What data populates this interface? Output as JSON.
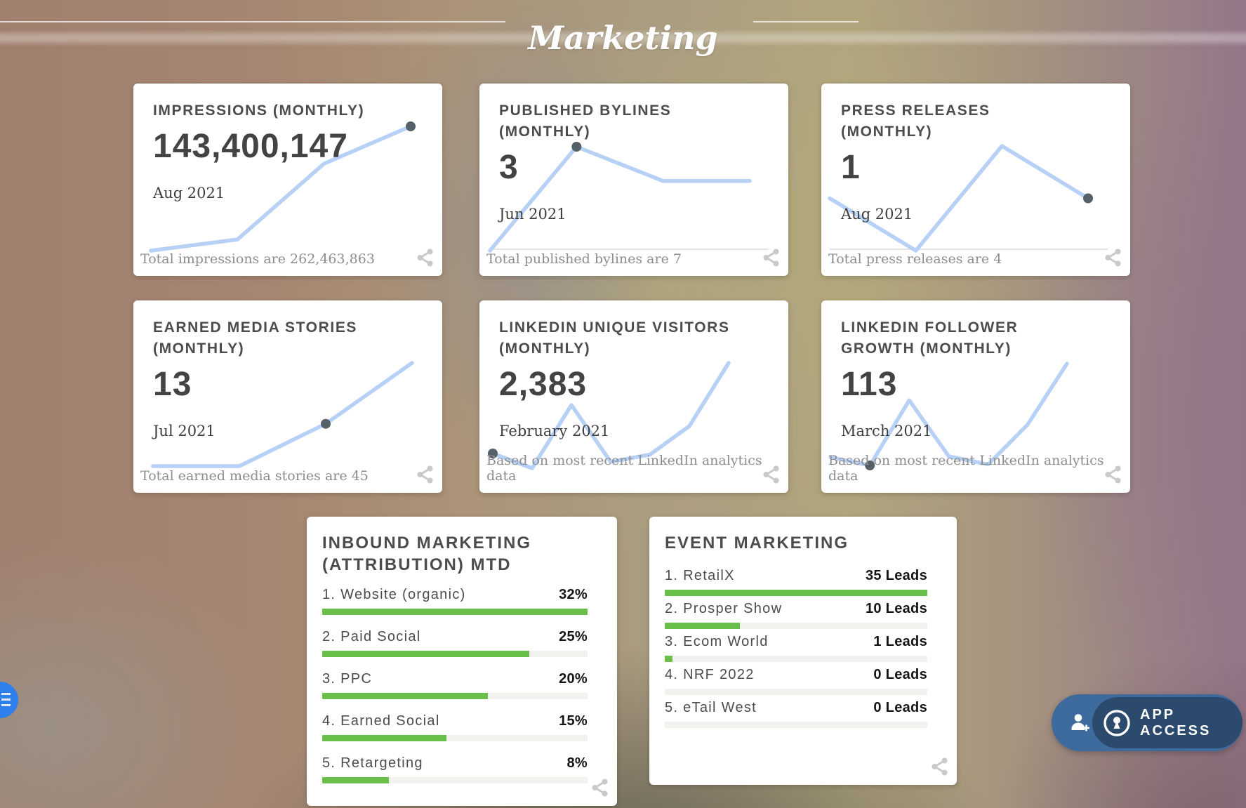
{
  "header": {
    "title": "Marketing"
  },
  "metric_cards": [
    {
      "title": "IMPRESSIONS (MONTHLY)",
      "value": "143,400,147",
      "date": "Aug 2021",
      "footnote": "Total impressions are 262,463,863"
    },
    {
      "title": "PUBLISHED BYLINES\n(MONTHLY)",
      "value": "3",
      "date": "Jun 2021",
      "footnote": "Total published bylines are 7"
    },
    {
      "title": "PRESS RELEASES\n(MONTHLY)",
      "value": "1",
      "date": "Aug 2021",
      "footnote": "Total press releases are 4"
    },
    {
      "title": "EARNED MEDIA STORIES\n(MONTHLY)",
      "value": "13",
      "date": "Jul 2021",
      "footnote": "Total earned media stories are 45"
    },
    {
      "title": "LINKEDIN UNIQUE VISITORS\n(MONTHLY)",
      "value": "2,383",
      "date": "February 2021",
      "footnote": "Based on most recent LinkedIn analytics data"
    },
    {
      "title": "LINKEDIN FOLLOWER\nGROWTH (MONTHLY)",
      "value": "113",
      "date": "March 2021",
      "footnote": "Based on most recent LinkedIn analytics data"
    }
  ],
  "bar_cards": [
    {
      "title": "INBOUND MARKETING\n(ATTRIBUTION) MTD",
      "items": [
        {
          "label": "1. Website (organic)",
          "value_label": "32%"
        },
        {
          "label": "2. Paid Social",
          "value_label": "25%"
        },
        {
          "label": "3. PPC",
          "value_label": "20%"
        },
        {
          "label": "4. Earned Social",
          "value_label": "15%"
        },
        {
          "label": "5. Retargeting",
          "value_label": "8%"
        }
      ]
    },
    {
      "title": "EVENT MARKETING",
      "items": [
        {
          "label": "1. RetailX",
          "value_label": "35 Leads"
        },
        {
          "label": "2. Prosper Show",
          "value_label": "10 Leads"
        },
        {
          "label": "3. Ecom World",
          "value_label": "1 Leads"
        },
        {
          "label": "4. NRF 2022",
          "value_label": "0 Leads"
        },
        {
          "label": "5. eTail West",
          "value_label": "0 Leads"
        }
      ]
    }
  ],
  "floating": {
    "app_access_label": "APP ACCESS"
  },
  "icons": {
    "share": "share-nodes",
    "person_add": "person-plus",
    "app_access_key": "keyhole-in-circle",
    "edge_widget": "menu-lines"
  },
  "colors": {
    "accent_green": "#6abf4b",
    "bar_track": "#f1f1ee",
    "spark_blue": "#b7d0f5",
    "dot_gray": "#566069",
    "baseline_gray": "#dcdcdc",
    "pill_light_blue": "#3e6b9d",
    "pill_dark_blue": "#2b4a6e",
    "edge_circle_blue": "#2f80ed",
    "card_bg": "#ffffff",
    "title_gray": "#4c4c4c"
  },
  "chart_data": [
    {
      "type": "line",
      "metric": "IMPRESSIONS (MONTHLY)",
      "current_value": 143400147,
      "period": "Aug 2021",
      "total": 262463863,
      "y_relative": [
        0,
        9,
        70,
        100
      ],
      "highlight_index": 3
    },
    {
      "type": "line",
      "metric": "PUBLISHED BYLINES (MONTHLY)",
      "current_value": 3,
      "period": "Jun 2021",
      "total": 7,
      "y_relative": [
        0,
        100,
        67,
        67
      ],
      "highlight_index": 1
    },
    {
      "type": "line",
      "metric": "PRESS RELEASES (MONTHLY)",
      "current_value": 1,
      "period": "Aug 2021",
      "total": 4,
      "y_relative": [
        50,
        0,
        100,
        50
      ],
      "highlight_index": 3
    },
    {
      "type": "line",
      "metric": "EARNED MEDIA STORIES (MONTHLY)",
      "current_value": 13,
      "period": "Jul 2021",
      "total": 45,
      "y_relative": [
        0,
        0,
        41,
        100
      ],
      "highlight_index": 2
    },
    {
      "type": "line",
      "metric": "LINKEDIN UNIQUE VISITORS (MONTHLY)",
      "current_value": 2383,
      "period": "February 2021",
      "y_relative": [
        14,
        0,
        60,
        6,
        13,
        40,
        100
      ],
      "highlight_index": 0
    },
    {
      "type": "line",
      "metric": "LINKEDIN FOLLOWER GROWTH (MONTHLY)",
      "current_value": 113,
      "period": "March 2021",
      "y_relative": [
        8,
        0,
        64,
        9,
        1,
        40,
        100
      ],
      "highlight_index": 1
    },
    {
      "type": "bar",
      "title": "INBOUND MARKETING (ATTRIBUTION) MTD",
      "unit": "%",
      "categories": [
        "Website (organic)",
        "Paid Social",
        "PPC",
        "Earned Social",
        "Retargeting"
      ],
      "values": [
        32,
        25,
        20,
        15,
        8
      ],
      "bar_scale": "relative to max (32% = full bar)"
    },
    {
      "type": "bar",
      "title": "EVENT MARKETING",
      "unit": "Leads",
      "categories": [
        "RetailX",
        "Prosper Show",
        "Ecom World",
        "NRF 2022",
        "eTail West"
      ],
      "values": [
        35,
        10,
        1,
        0,
        0
      ],
      "bar_scale": "relative to max (35 = full bar)"
    }
  ]
}
